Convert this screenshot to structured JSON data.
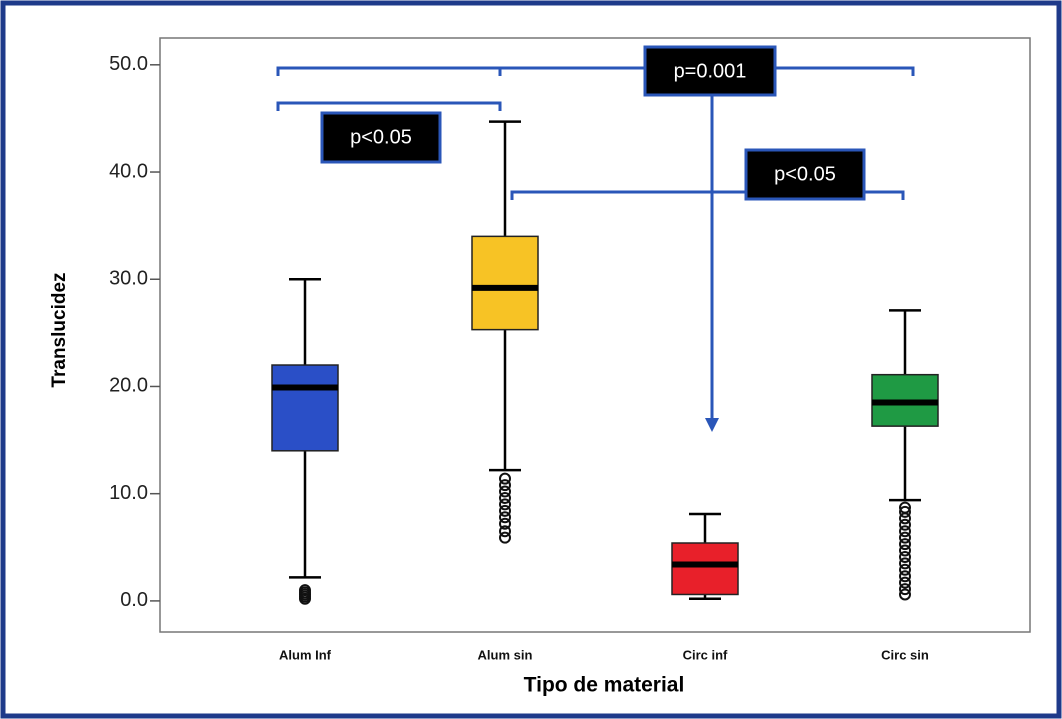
{
  "chart_data": {
    "type": "box",
    "x_label": "Tipo de material",
    "y_label": "Translucidez",
    "categories": [
      "Alum Inf",
      "Alum sin",
      "Circ inf",
      "Circ sin"
    ],
    "colors": [
      "#2a4fc7",
      "#f7c325",
      "#e8202a",
      "#1f9a44"
    ],
    "whisker_low": [
      2.2,
      12.2,
      0.2,
      9.4
    ],
    "q1": [
      14.0,
      25.3,
      0.6,
      16.3
    ],
    "median": [
      19.9,
      29.2,
      3.4,
      18.5
    ],
    "q3": [
      22.0,
      34.0,
      5.4,
      21.1
    ],
    "whisker_high": [
      30.0,
      44.7,
      8.1,
      27.1
    ],
    "outliers": [
      [
        0.2,
        0.4,
        0.6,
        0.8,
        1.0
      ],
      [
        5.9,
        6.5,
        7.2,
        7.8,
        8.4,
        9.0,
        9.6,
        10.2,
        10.8,
        11.4
      ],
      [],
      [
        0.6,
        1.1,
        1.7,
        2.3,
        2.9,
        3.5,
        4.1,
        4.7,
        5.3,
        5.9,
        6.5,
        7.1,
        7.7,
        8.3,
        8.7
      ]
    ],
    "ylim": [
      -2.9,
      52.5
    ],
    "yticks": [
      {
        "value": 0,
        "label": "0.0"
      },
      {
        "value": 10,
        "label": "10.0"
      },
      {
        "value": 20,
        "label": "20.0"
      },
      {
        "value": 30,
        "label": "30.0"
      },
      {
        "value": 40,
        "label": "40.0"
      },
      {
        "value": 50,
        "label": "50.0"
      }
    ],
    "annotations": [
      "p=0.001",
      "p<0.05",
      "p<0.05"
    ]
  }
}
